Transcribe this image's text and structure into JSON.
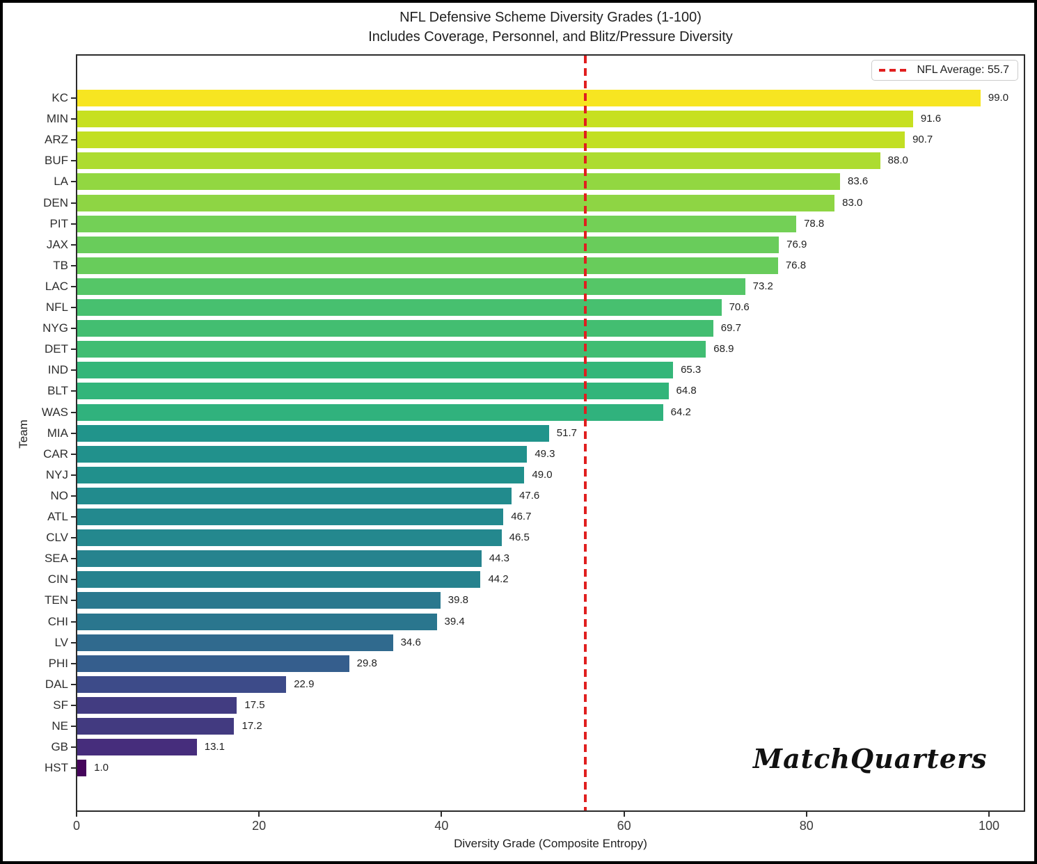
{
  "chart_data": {
    "type": "bar",
    "orientation": "horizontal",
    "title": "NFL Defensive Scheme Diversity Grades (1-100)",
    "subtitle": "Includes Coverage, Personnel, and Blitz/Pressure Diversity",
    "xlabel": "Diversity Grade (Composite Entropy)",
    "ylabel": "Team",
    "xlim": [
      0,
      103.9
    ],
    "xticks": [
      0,
      20,
      40,
      60,
      80,
      100
    ],
    "grid": false,
    "legend_position": "upper right",
    "categories": [
      "KC",
      "MIN",
      "ARZ",
      "BUF",
      "LA",
      "DEN",
      "PIT",
      "JAX",
      "TB",
      "LAC",
      "NFL",
      "NYG",
      "DET",
      "IND",
      "BLT",
      "WAS",
      "MIA",
      "CAR",
      "NYJ",
      "NO",
      "ATL",
      "CLV",
      "SEA",
      "CIN",
      "TEN",
      "CHI",
      "LV",
      "PHI",
      "DAL",
      "SF",
      "NE",
      "GB",
      "HST"
    ],
    "values": [
      99.0,
      91.6,
      90.7,
      88.0,
      83.6,
      83.0,
      78.8,
      76.9,
      76.8,
      73.2,
      70.6,
      69.7,
      68.9,
      65.3,
      64.8,
      64.2,
      51.7,
      49.3,
      49.0,
      47.6,
      46.7,
      46.5,
      44.3,
      44.2,
      39.8,
      39.4,
      34.6,
      29.8,
      22.9,
      17.5,
      17.2,
      13.1,
      1.0
    ],
    "bar_colors": [
      "#f7e521",
      "#c7e020",
      "#c2df23",
      "#addc30",
      "#92d741",
      "#8ed544",
      "#73d056",
      "#69cc5b",
      "#68cc5b",
      "#55c667",
      "#47c06f",
      "#43be71",
      "#40bd72",
      "#34b679",
      "#32b57a",
      "#30b27d",
      "#21948b",
      "#21918c",
      "#21908c",
      "#228b8d",
      "#23898e",
      "#24888e",
      "#26838e",
      "#26828e",
      "#2a788e",
      "#2a768e",
      "#306a8e",
      "#355e8d",
      "#3d4b89",
      "#423c81",
      "#423a80",
      "#462d7c",
      "#45055b"
    ],
    "average_line": {
      "value": 55.7,
      "label": "NFL Average: 55.7",
      "color": "#e01f1f",
      "style": "dashed"
    },
    "watermark": "MatchQuarters"
  }
}
